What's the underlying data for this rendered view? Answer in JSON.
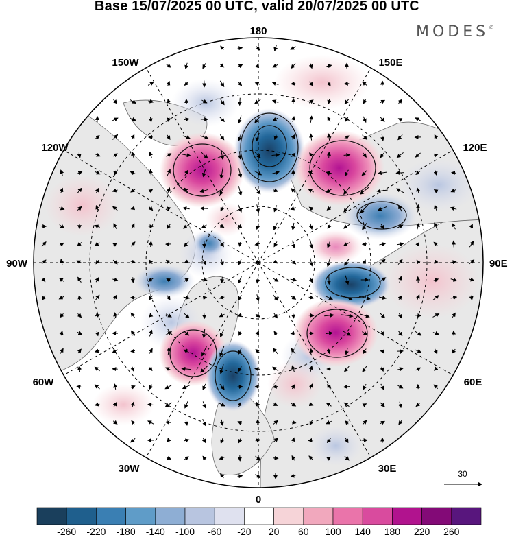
{
  "title": "Base 15/07/2025 00 UTC, valid 20/07/2025 00 UTC",
  "brand": "MODES",
  "brand_mark": "©",
  "map": {
    "lon_labels": {
      "top": "180",
      "bottom": "0",
      "left": "90W",
      "right": "90E",
      "upper_left_1": "150W",
      "upper_left_2": "120W",
      "upper_right_1": "150E",
      "upper_right_2": "120E",
      "lower_left_1": "60W",
      "lower_left_2": "30W",
      "lower_right_1": "60E",
      "lower_right_2": "30E"
    },
    "reference_vector_label": "30",
    "colors": {
      "land": "#e8e8e8",
      "ocean": "#ffffff",
      "negative_strong": "#1f5a87",
      "positive_strong": "#c01a8c"
    }
  },
  "colorbar": {
    "ticks": [
      "-260",
      "-220",
      "-180",
      "-140",
      "-100",
      "-60",
      "-20",
      "20",
      "60",
      "100",
      "140",
      "180",
      "220",
      "260"
    ],
    "colors": [
      "#1a3f5c",
      "#1f5f8d",
      "#3a7fb3",
      "#5f9cc8",
      "#8eaed4",
      "#b8c5e0",
      "#dfe1ef",
      "#ffffff",
      "#f6d4d8",
      "#f1a8bd",
      "#ea74aa",
      "#d94b9e",
      "#b1138e",
      "#830a77",
      "#58167d"
    ]
  }
}
